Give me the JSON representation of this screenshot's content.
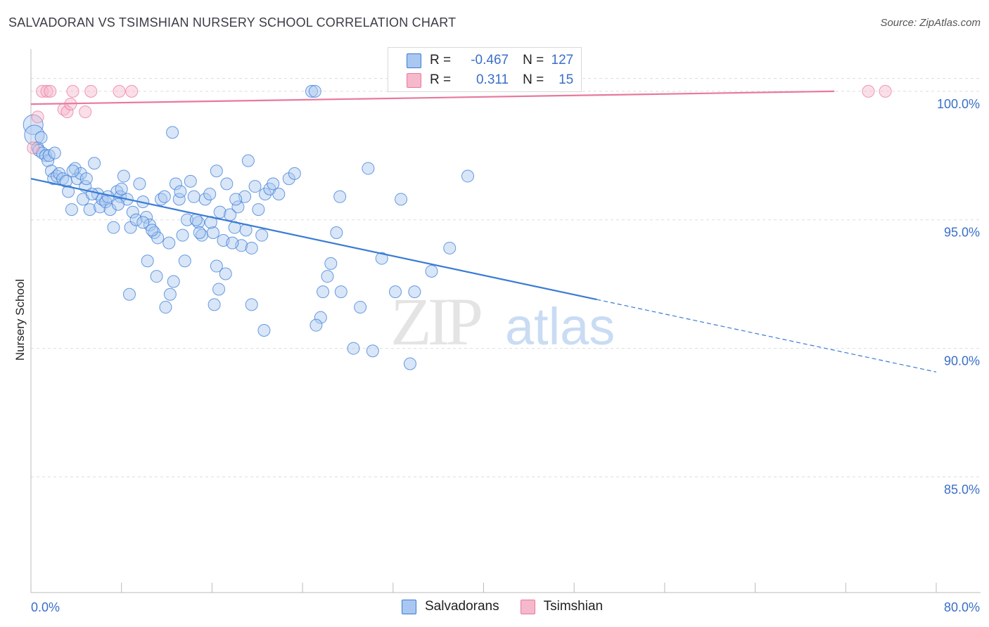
{
  "title": "SALVADORAN VS TSIMSHIAN NURSERY SCHOOL CORRELATION CHART",
  "source": "Source: ZipAtlas.com",
  "watermark": {
    "zip": "ZIP",
    "atlas": "atlas"
  },
  "colors": {
    "blue": "#3a7bd5",
    "blue_fill": "#a9c7f0",
    "pink": "#e8799b",
    "pink_fill": "#f6b8cb",
    "tick_text": "#3a6fc9",
    "grid": "#dddddd"
  },
  "legend": {
    "rows": [
      {
        "r_label": "R =",
        "r_value": "-0.467",
        "n_label": "N =",
        "n_value": "127"
      },
      {
        "r_label": "R =",
        "r_value": "0.311",
        "n_label": "N =",
        "n_value": "15"
      }
    ]
  },
  "bottom_legend": {
    "series1": "Salvadorans",
    "series2": "Tsimshian"
  },
  "chart_data": {
    "type": "scatter",
    "title": "SALVADORAN VS TSIMSHIAN NURSERY SCHOOL CORRELATION CHART",
    "xlabel": "",
    "ylabel": "Nursery School",
    "xlim": [
      0,
      80
    ],
    "ylim": [
      80.5,
      101.5
    ],
    "x_tick_labels": [
      "0.0%",
      "80.0%"
    ],
    "y_ticks": [
      {
        "value": 100,
        "label": "100.0%"
      },
      {
        "value": 95,
        "label": "95.0%"
      },
      {
        "value": 90,
        "label": "90.0%"
      },
      {
        "value": 85,
        "label": "85.0%"
      }
    ],
    "series": [
      {
        "name": "Salvadorans",
        "r": -0.467,
        "n": 127,
        "trend": {
          "x0": 0,
          "y0": 96.6,
          "x1": 50,
          "y1": 91.9,
          "x_dash_end": 80
        },
        "points": [
          [
            0.2,
            98.7
          ],
          [
            0.3,
            98.3
          ],
          [
            0.6,
            97.8
          ],
          [
            0.7,
            97.7
          ],
          [
            1.0,
            97.6
          ],
          [
            1.3,
            97.5
          ],
          [
            1.5,
            97.3
          ],
          [
            1.8,
            96.9
          ],
          [
            2.0,
            96.6
          ],
          [
            2.3,
            96.7
          ],
          [
            2.5,
            96.8
          ],
          [
            2.8,
            96.6
          ],
          [
            3.1,
            96.5
          ],
          [
            3.3,
            96.1
          ],
          [
            3.6,
            95.4
          ],
          [
            3.9,
            97.0
          ],
          [
            4.1,
            96.6
          ],
          [
            4.4,
            96.8
          ],
          [
            4.6,
            95.8
          ],
          [
            4.8,
            96.3
          ],
          [
            5.2,
            95.4
          ],
          [
            5.6,
            97.2
          ],
          [
            5.9,
            96.0
          ],
          [
            6.1,
            95.5
          ],
          [
            6.3,
            95.8
          ],
          [
            6.6,
            95.7
          ],
          [
            7.0,
            95.4
          ],
          [
            7.3,
            94.7
          ],
          [
            7.6,
            96.1
          ],
          [
            7.9,
            95.9
          ],
          [
            8.2,
            96.7
          ],
          [
            8.5,
            95.8
          ],
          [
            8.8,
            94.7
          ],
          [
            9.0,
            95.3
          ],
          [
            9.3,
            95.0
          ],
          [
            9.6,
            96.4
          ],
          [
            9.9,
            95.7
          ],
          [
            10.2,
            95.1
          ],
          [
            10.5,
            94.8
          ],
          [
            10.9,
            94.5
          ],
          [
            11.2,
            94.3
          ],
          [
            11.5,
            95.8
          ],
          [
            11.8,
            95.9
          ],
          [
            12.2,
            94.1
          ],
          [
            12.5,
            98.4
          ],
          [
            12.8,
            96.4
          ],
          [
            13.1,
            95.8
          ],
          [
            13.4,
            94.4
          ],
          [
            13.8,
            95.0
          ],
          [
            14.1,
            96.5
          ],
          [
            14.4,
            95.9
          ],
          [
            14.8,
            94.9
          ],
          [
            15.1,
            94.4
          ],
          [
            15.4,
            95.8
          ],
          [
            15.8,
            96.0
          ],
          [
            16.1,
            94.5
          ],
          [
            16.4,
            96.9
          ],
          [
            16.7,
            95.3
          ],
          [
            17.0,
            94.2
          ],
          [
            17.3,
            96.4
          ],
          [
            17.6,
            95.2
          ],
          [
            18.0,
            94.7
          ],
          [
            18.3,
            95.5
          ],
          [
            18.6,
            94.0
          ],
          [
            18.9,
            95.9
          ],
          [
            19.2,
            97.3
          ],
          [
            19.5,
            93.9
          ],
          [
            19.8,
            96.3
          ],
          [
            20.1,
            95.4
          ],
          [
            20.4,
            94.4
          ],
          [
            20.7,
            96.0
          ],
          [
            21.1,
            96.2
          ],
          [
            21.4,
            96.4
          ],
          [
            24.8,
            100.0
          ],
          [
            25.1,
            100.0
          ],
          [
            27.3,
            95.9
          ],
          [
            27.0,
            94.5
          ],
          [
            29.8,
            97.0
          ],
          [
            32.7,
            95.8
          ],
          [
            38.6,
            96.7
          ],
          [
            31.0,
            93.5
          ],
          [
            32.2,
            92.2
          ],
          [
            33.9,
            92.2
          ],
          [
            35.4,
            93.0
          ],
          [
            37.0,
            93.9
          ],
          [
            26.5,
            93.3
          ],
          [
            26.2,
            92.8
          ],
          [
            25.8,
            92.2
          ],
          [
            27.4,
            92.2
          ],
          [
            29.1,
            91.6
          ],
          [
            25.6,
            91.2
          ],
          [
            28.5,
            90.0
          ],
          [
            25.2,
            90.9
          ],
          [
            20.6,
            90.7
          ],
          [
            30.2,
            89.9
          ],
          [
            33.5,
            89.4
          ],
          [
            19.5,
            91.7
          ],
          [
            10.3,
            93.4
          ],
          [
            11.1,
            92.8
          ],
          [
            12.6,
            92.6
          ],
          [
            13.6,
            93.4
          ],
          [
            16.4,
            93.2
          ],
          [
            17.2,
            92.9
          ],
          [
            16.6,
            92.3
          ],
          [
            8.7,
            92.1
          ],
          [
            12.3,
            92.1
          ],
          [
            11.9,
            91.6
          ],
          [
            16.2,
            91.7
          ],
          [
            1.6,
            97.5
          ],
          [
            2.1,
            97.6
          ],
          [
            0.9,
            98.2
          ],
          [
            3.7,
            96.9
          ],
          [
            4.9,
            96.6
          ],
          [
            6.8,
            95.9
          ],
          [
            7.7,
            95.6
          ],
          [
            9.9,
            94.9
          ],
          [
            10.7,
            94.6
          ],
          [
            14.6,
            95.0
          ],
          [
            15.9,
            94.9
          ],
          [
            18.1,
            95.8
          ],
          [
            19.0,
            94.6
          ],
          [
            21.9,
            96.0
          ],
          [
            22.8,
            96.6
          ],
          [
            23.3,
            96.8
          ],
          [
            5.4,
            96.0
          ],
          [
            8.0,
            96.2
          ],
          [
            13.2,
            96.1
          ],
          [
            14.9,
            94.5
          ],
          [
            17.8,
            94.1
          ]
        ]
      },
      {
        "name": "Tsimshian",
        "r": 0.311,
        "n": 15,
        "trend": {
          "x0": 0,
          "y0": 99.5,
          "x1": 71,
          "y1": 100.0
        },
        "points": [
          [
            0.2,
            97.8
          ],
          [
            0.6,
            99.0
          ],
          [
            1.0,
            100.0
          ],
          [
            1.4,
            100.0
          ],
          [
            1.7,
            100.0
          ],
          [
            2.9,
            99.3
          ],
          [
            3.2,
            99.2
          ],
          [
            3.5,
            99.5
          ],
          [
            4.8,
            99.2
          ],
          [
            3.7,
            100.0
          ],
          [
            5.3,
            100.0
          ],
          [
            7.8,
            100.0
          ],
          [
            8.9,
            100.0
          ],
          [
            74.0,
            100.0
          ],
          [
            75.5,
            100.0
          ]
        ]
      }
    ]
  }
}
